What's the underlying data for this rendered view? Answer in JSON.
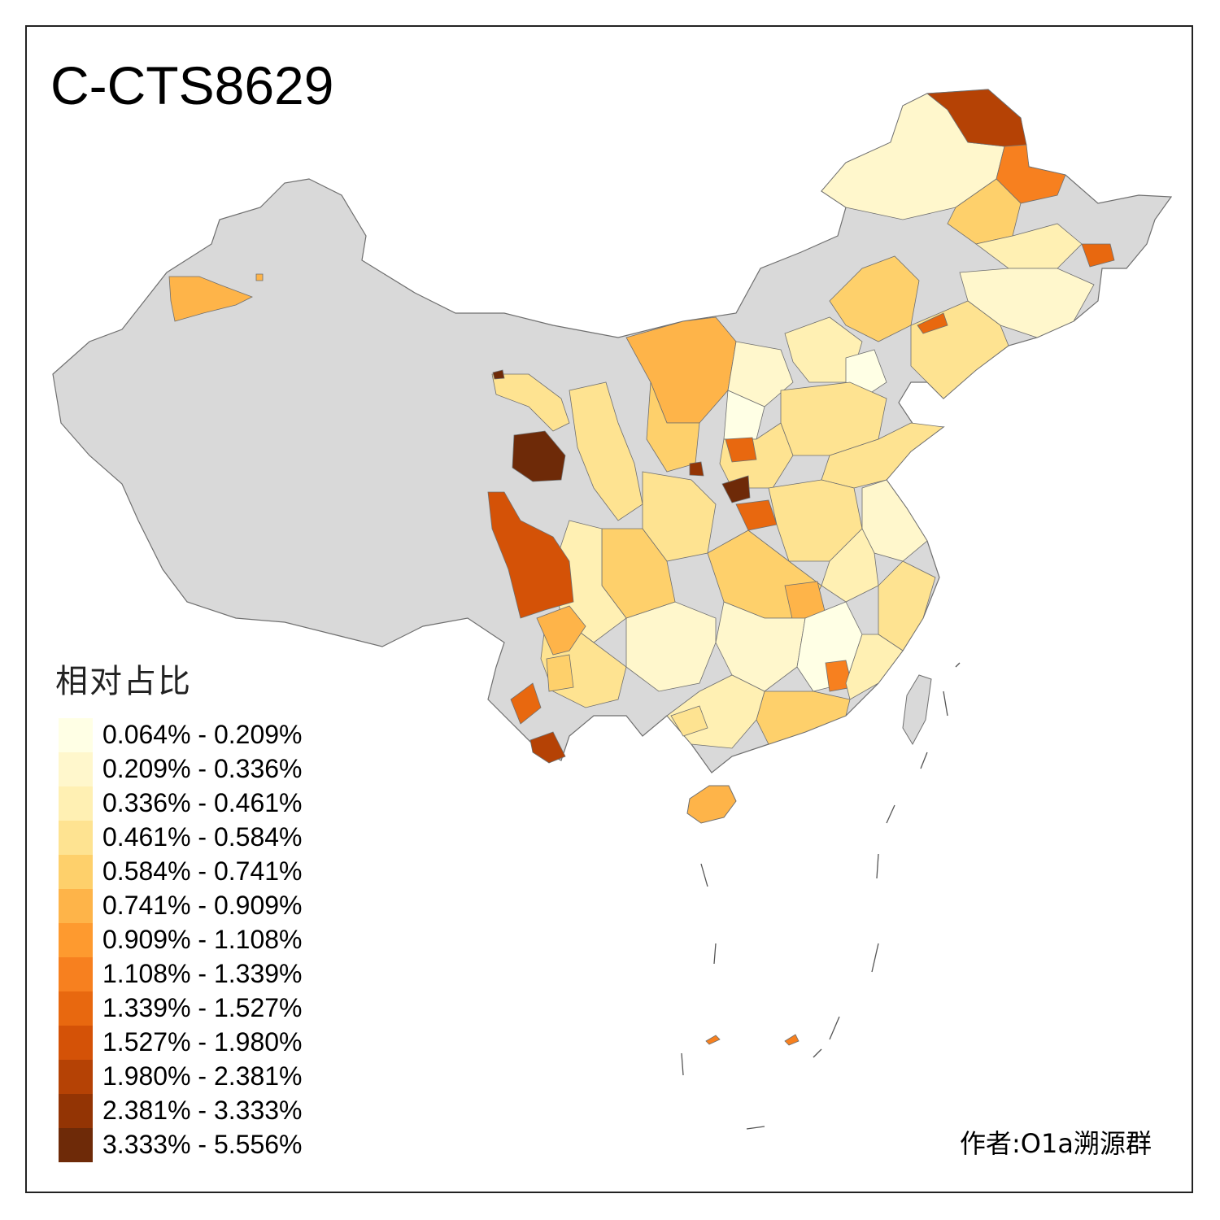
{
  "title": "C-CTS8629",
  "legend": {
    "title": "相对占比",
    "items": [
      {
        "label": "0.064% - 0.209%",
        "color": "#ffffe5"
      },
      {
        "label": "0.209% - 0.336%",
        "color": "#fff7cc"
      },
      {
        "label": "0.336% - 0.461%",
        "color": "#fff0b3"
      },
      {
        "label": "0.461% - 0.584%",
        "color": "#fee391"
      },
      {
        "label": "0.584% - 0.741%",
        "color": "#fed06b"
      },
      {
        "label": "0.741% - 0.909%",
        "color": "#feb449"
      },
      {
        "label": "0.909% - 1.108%",
        "color": "#fe9a2f"
      },
      {
        "label": "1.108% - 1.339%",
        "color": "#f7801f"
      },
      {
        "label": "1.339% - 1.527%",
        "color": "#e8680f"
      },
      {
        "label": "1.527% - 1.980%",
        "color": "#d45207"
      },
      {
        "label": "1.980% - 2.381%",
        "color": "#b54205"
      },
      {
        "label": "2.381% - 3.333%",
        "color": "#933404"
      },
      {
        "label": "3.333% - 5.556%",
        "color": "#6e2a08"
      }
    ]
  },
  "author": "作者:O1a溯源群",
  "colors": {
    "no_data": "#d9d9d9",
    "border": "#6f6f6f",
    "frame": "#222222"
  }
}
